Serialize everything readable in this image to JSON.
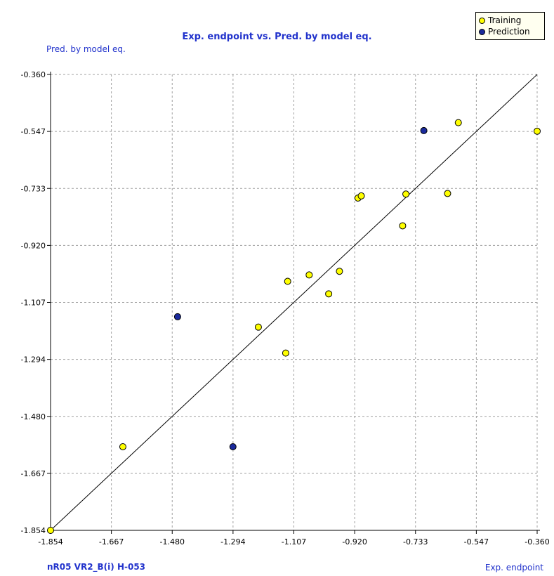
{
  "chart_data": {
    "type": "scatter",
    "title": "Exp. endpoint vs. Pred. by model eq.",
    "xlabel": "Exp. endpoint",
    "ylabel": "Pred. by model eq.",
    "footer": "nR05  VR2_B(i)  H-053",
    "xlim": [
      -1.854,
      -0.36
    ],
    "ylim": [
      -1.854,
      -0.36
    ],
    "xticks": [
      "-1.854",
      "-1.667",
      "-1.480",
      "-1.294",
      "-1.107",
      "-0.920",
      "-0.733",
      "-0.547",
      "-0.360"
    ],
    "yticks": [
      "-0.360",
      "-0.547",
      "-0.733",
      "-0.920",
      "-1.107",
      "-1.294",
      "-1.480",
      "-1.667",
      "-1.854"
    ],
    "grid": true,
    "legend_position": "top-right",
    "diagonal": true,
    "series": [
      {
        "name": "Training",
        "color": "#ffff00",
        "points": [
          [
            -1.854,
            -1.854
          ],
          [
            -1.632,
            -1.58
          ],
          [
            -1.216,
            -1.188
          ],
          [
            -1.132,
            -1.273
          ],
          [
            -1.126,
            -1.038
          ],
          [
            -1.06,
            -1.017
          ],
          [
            -1.0,
            -1.079
          ],
          [
            -0.967,
            -1.005
          ],
          [
            -0.91,
            -0.765
          ],
          [
            -0.9,
            -0.758
          ],
          [
            -0.773,
            -0.856
          ],
          [
            -0.763,
            -0.752
          ],
          [
            -0.635,
            -0.75
          ],
          [
            -0.602,
            -0.518
          ],
          [
            -0.36,
            -0.546
          ]
        ]
      },
      {
        "name": "Prediction",
        "color": "#1a2a9c",
        "points": [
          [
            -1.464,
            -1.154
          ],
          [
            -1.294,
            -1.58
          ],
          [
            -0.708,
            -0.544
          ]
        ]
      }
    ]
  }
}
